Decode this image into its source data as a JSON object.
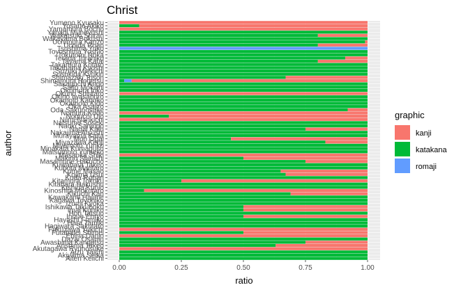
{
  "chart_data": {
    "type": "bar",
    "orientation": "horizontal",
    "stacked": true,
    "title": "Christ",
    "xlabel": "ratio",
    "ylabel": "author",
    "xlim": [
      0,
      1
    ],
    "x_ticks": [
      "0.00",
      "0.25",
      "0.50",
      "0.75",
      "1.00"
    ],
    "grid": true,
    "legend": {
      "title": "graphic",
      "position": "right"
    },
    "colors": {
      "kanji": "#F8766D",
      "katakana": "#00BA38",
      "romaji": "#619CFF"
    },
    "categories": [
      "Yumeno Kyusaku",
      "Yosano Akiko",
      "Yamamura Bocho",
      "Yanagi Muneyoshi",
      "Wakatsuki Shiran",
      "Wakayama Bokusui",
      "Uchimura Kanzo",
      "Uchida Roan",
      "Tsushima Yuko",
      "Toyoshima Yoshio",
      "Tokutomi Roka",
      "Terada Torahiko",
      "Tayama Katai",
      "Takamura Kotaro",
      "Takahama Kyoshi",
      "Suzuki Miekichi",
      "Susukida Kyukin",
      "Shimazaki Toson",
      "Shimamura Hogetsu",
      "Sakaguchi Ango",
      "Saito Mokichi",
      "Okumura Ioko",
      "Okuno Shintaro",
      "Okino Iwasaburo",
      "Okamoto Kanoko",
      "Okamoto Kido",
      "Oka Asajiro",
      "Oda Sakunosuke",
      "Nomura Kodo",
      "Noguchi Ujo",
      "Niimi Nankichi",
      "Natsume Soseki",
      "Naoki Sanjugo",
      "Nagai Kafu",
      "Nakajima Atsushi",
      "Murayama Kaita",
      "Mori Ogai",
      "Miyazawa Kenji",
      "Miyamoto Yuriko",
      "Minakata Kumagusu",
      "Matsumoto Yumeko",
      "Masaoka Shiki",
      "Makino Shinichi",
      "Masamune Hakucho",
      "Kuwabara Takeo",
      "Kubota Mantaro",
      "Kume Masao",
      "Kojima Usui",
      "Koda Rohan",
      "Kitamura Tokoku",
      "Kitahara Hakushu",
      "Kishida Kunio",
      "Kinoshita Mokutaro",
      "Kikuchi Kan",
      "Kawakami Hajime",
      "Kagawa Toyohiko",
      "Izumi Kyoka",
      "Ishikawa Takuboku",
      "Imai Kuniko",
      "Hori Tatsuo",
      "Inoue Enryo",
      "Hayashi Fumiko",
      "Hara Tamiki",
      "Hagiwara Sakutaro",
      "Fukuzawa Yukichi",
      "Futabatei Shimei",
      "Ebina Danjo",
      "Dazai Osamu",
      "Awashima Kangetsu",
      "Arishima Takeo",
      "Akutagawa Ryunosuke",
      "Aizu Yaichi",
      "Akiyama Seika",
      "Aiten Keiichi"
    ],
    "series": [
      {
        "name": "katakana",
        "values": [
          0.0,
          0.08,
          0.0,
          1.0,
          0.8,
          1.0,
          0.99,
          0.8,
          0.0,
          1.0,
          1.0,
          0.91,
          0.8,
          1.0,
          1.0,
          1.0,
          1.0,
          0.67,
          0.02,
          1.0,
          1.0,
          1.0,
          0.0,
          1.0,
          1.0,
          1.0,
          1.0,
          0.92,
          0.0,
          0.2,
          0.0,
          1.0,
          1.0,
          0.75,
          1.0,
          1.0,
          0.45,
          0.83,
          1.0,
          1.0,
          1.0,
          0.0,
          0.5,
          0.75,
          1.0,
          1.0,
          0.65,
          0.67,
          1.0,
          0.25,
          1.0,
          1.0,
          0.1,
          0.69,
          1.0,
          1.0,
          1.0,
          0.5,
          0.5,
          1.0,
          0.5,
          1.0,
          1.0,
          1.0,
          0.0,
          0.5,
          0.0,
          1.0,
          0.75,
          0.63,
          0.0,
          1.0,
          1.0,
          1.0
        ]
      },
      {
        "name": "romaji",
        "values": [
          0.0,
          0.0,
          0.0,
          0.0,
          0.0,
          0.0,
          0.0,
          0.0,
          1.0,
          0.0,
          0.0,
          0.0,
          0.0,
          0.0,
          0.0,
          0.0,
          0.0,
          0.0,
          0.03,
          0.0,
          0.0,
          0.0,
          0.0,
          0.0,
          0.0,
          0.0,
          0.0,
          0.0,
          0.0,
          0.0,
          0.0,
          0.0,
          0.0,
          0.0,
          0.0,
          0.0,
          0.0,
          0.0,
          0.0,
          0.0,
          0.0,
          0.0,
          0.0,
          0.0,
          0.0,
          0.0,
          0.0,
          0.0,
          0.0,
          0.0,
          0.0,
          0.0,
          0.0,
          0.0,
          0.0,
          0.0,
          0.0,
          0.0,
          0.0,
          0.0,
          0.0,
          0.0,
          0.0,
          0.0,
          0.0,
          0.0,
          0.0,
          0.0,
          0.0,
          0.0,
          0.0,
          0.0,
          0.0,
          0.0
        ]
      },
      {
        "name": "kanji",
        "values": [
          1.0,
          0.92,
          1.0,
          0.0,
          0.2,
          0.0,
          0.01,
          0.2,
          0.0,
          0.0,
          0.0,
          0.09,
          0.2,
          0.0,
          0.0,
          0.0,
          0.0,
          0.33,
          0.95,
          0.0,
          0.0,
          0.0,
          1.0,
          0.0,
          0.0,
          0.0,
          0.0,
          0.08,
          1.0,
          0.8,
          1.0,
          0.0,
          0.0,
          0.25,
          0.0,
          0.0,
          0.55,
          0.17,
          0.0,
          0.0,
          0.0,
          1.0,
          0.5,
          0.25,
          0.0,
          0.0,
          0.35,
          0.33,
          0.0,
          0.75,
          0.0,
          0.0,
          0.9,
          0.31,
          0.0,
          0.0,
          0.0,
          0.5,
          0.5,
          0.0,
          0.5,
          0.0,
          0.0,
          0.0,
          1.0,
          0.5,
          1.0,
          0.0,
          0.25,
          0.37,
          1.0,
          0.0,
          0.0,
          0.0
        ]
      }
    ]
  }
}
